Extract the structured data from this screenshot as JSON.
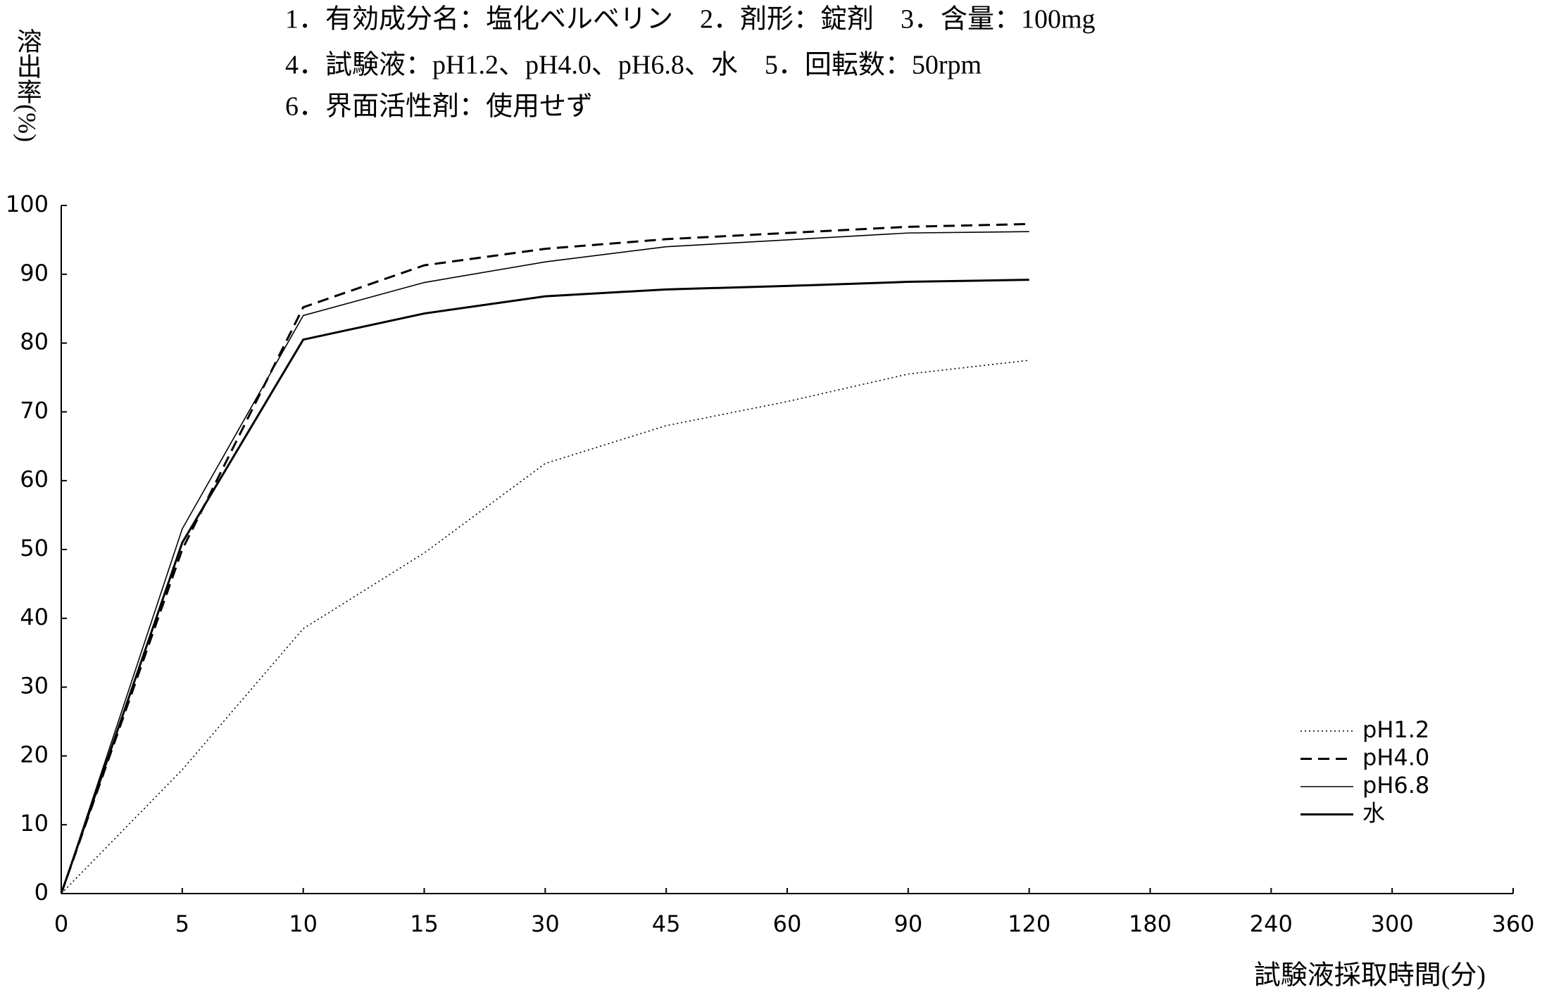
{
  "chart_data": {
    "type": "line",
    "title_lines": [
      "1．有効成分名：塩化ベルベリン　2．剤形：錠剤　3．含量：100mg",
      "4．試験液：pH1.2、pH4.0、pH6.8、水　5．回転数：50rpm",
      "6．界面活性剤：使用せず"
    ],
    "y_label": "溶出率(%)",
    "x_label": "試験液採取時間(分)",
    "categories": [
      "0",
      "5",
      "10",
      "15",
      "30",
      "45",
      "60",
      "90",
      "120",
      "180",
      "240",
      "300",
      "360"
    ],
    "series": [
      {
        "name": "pH1.2",
        "color": "#000000",
        "line_style": "dotted",
        "values": [
          0,
          18,
          38.5,
          49.5,
          62.5,
          68,
          71.5,
          75.5,
          77.5,
          null,
          null,
          null,
          null
        ]
      },
      {
        "name": "pH4.0",
        "color": "#000000",
        "line_style": "dashed",
        "values": [
          0,
          50,
          85.2,
          91.3,
          93.7,
          95.1,
          96,
          96.9,
          97.3,
          null,
          null,
          null,
          null
        ]
      },
      {
        "name": "pH6.8",
        "color": "#000000",
        "line_style": "thin",
        "values": [
          0,
          53,
          84,
          88.8,
          91.8,
          94,
          95,
          96,
          96.2,
          null,
          null,
          null,
          null
        ]
      },
      {
        "name": "水",
        "color": "#000000",
        "line_style": "thick",
        "values": [
          0,
          51,
          80.5,
          84.3,
          86.8,
          87.8,
          88.3,
          88.9,
          89.2,
          null,
          null,
          null,
          null
        ]
      }
    ],
    "ylim": [
      0,
      100
    ],
    "yticks": [
      0,
      10,
      20,
      30,
      40,
      50,
      60,
      70,
      80,
      90,
      100
    ],
    "grid": false,
    "legend": "lower right"
  }
}
